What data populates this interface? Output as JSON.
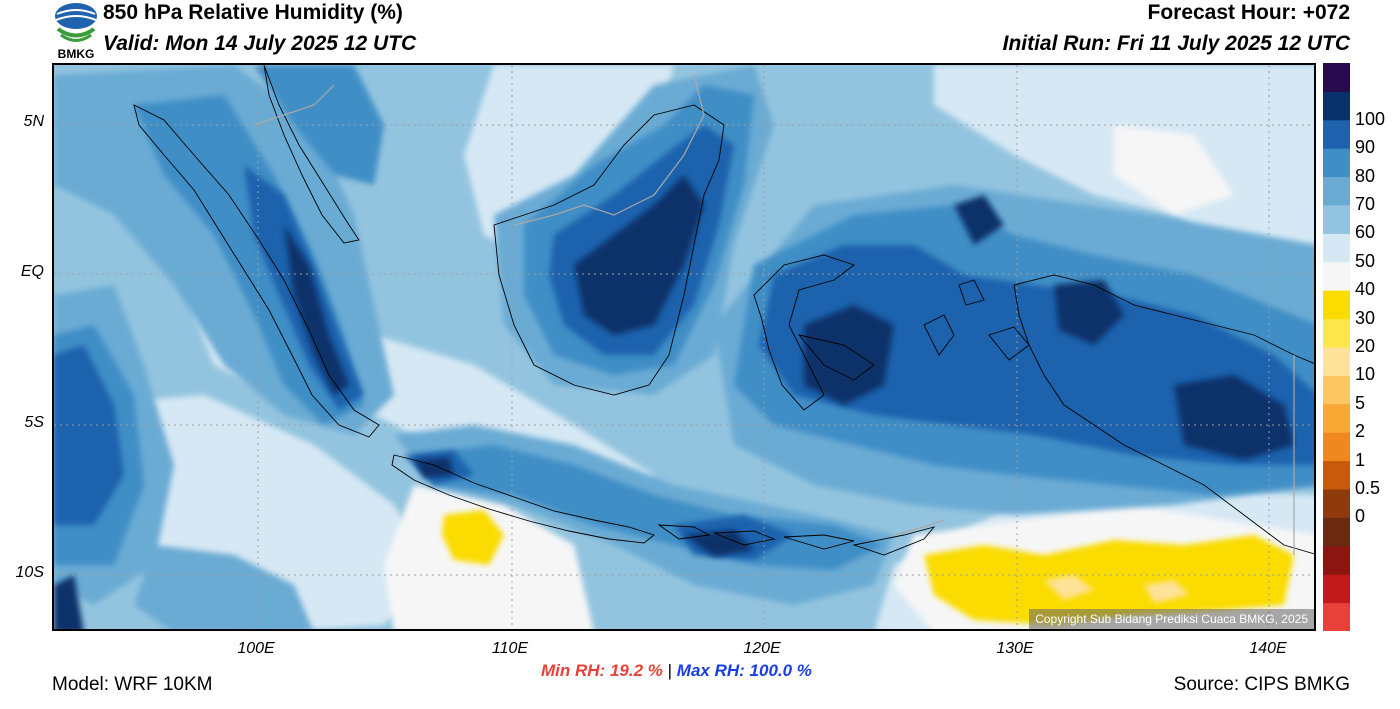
{
  "header": {
    "title": "850 hPa Relative Humidity (%)",
    "valid": "Valid: Mon 14 July 2025 12 UTC",
    "forecast_hour": "Forecast Hour: +072",
    "initial_run": "Initial Run: Fri 11 July 2025 12 UTC"
  },
  "logo": {
    "text": "BMKG",
    "icon": "bmkg-logo-icon"
  },
  "map": {
    "lat_labels": [
      "5N",
      "EQ",
      "5S",
      "10S"
    ],
    "lon_labels": [
      "100E",
      "110E",
      "120E",
      "130E",
      "140E"
    ],
    "copyright": "Copyright Sub Bidang Prediksi Cuaca BMKG, 2025"
  },
  "colorbar": {
    "labels": [
      "100",
      "90",
      "80",
      "70",
      "60",
      "50",
      "40",
      "30",
      "20",
      "10",
      "5",
      "2",
      "1",
      "0.5",
      "0"
    ],
    "colors": [
      "#e8413a",
      "#c21a1c",
      "#8c1512",
      "#6b2a10",
      "#8f3a0a",
      "#c85a0c",
      "#f08820",
      "#f8a835",
      "#fcc662",
      "#fee29a",
      "#fde64a",
      "#fadc00",
      "#f6f6f6",
      "#d6e8f4",
      "#93c4df",
      "#6aabd4",
      "#3f8ec6",
      "#1f62ad",
      "#08306b",
      "#2a0a4e"
    ]
  },
  "stats": {
    "min_label": "Min RH:",
    "min_value": "19.2 %",
    "separator": "|",
    "max_label": "Max RH:",
    "max_value": "100.0 %"
  },
  "footer": {
    "model": "Model: WRF 10KM",
    "source": "Source: CIPS BMKG"
  }
}
